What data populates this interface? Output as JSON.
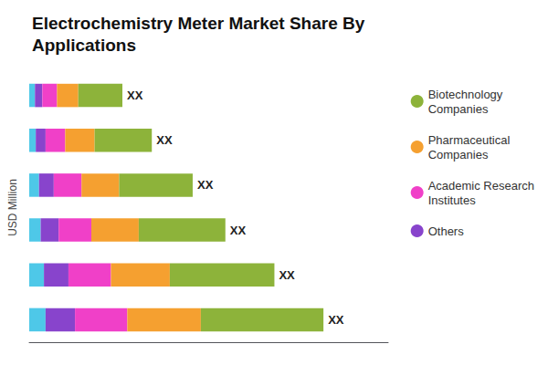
{
  "chart_data": {
    "type": "bar",
    "orientation": "horizontal",
    "stacked": true,
    "title": "Electrochemistry Meter Market Share By\nApplications",
    "y_label": "USD Million",
    "categories": [
      null,
      null,
      null,
      null,
      null,
      null
    ],
    "series": [
      {
        "color": "#4ec8e8",
        "values": [
          1.0,
          0.9,
          0.7,
          0.6,
          0.4,
          0.35
        ]
      },
      {
        "name": "Others",
        "color": "#8844cc",
        "values": [
          1.8,
          1.5,
          1.1,
          0.9,
          0.6,
          0.45
        ]
      },
      {
        "name": "Academic Research\nInstitutes",
        "color": "#f040c8",
        "values": [
          3.2,
          2.6,
          2.0,
          1.7,
          1.2,
          0.9
        ]
      },
      {
        "name": "Pharmaceutical\nCompanies",
        "color": "#f5a030",
        "values": [
          4.5,
          3.6,
          2.9,
          2.3,
          1.8,
          1.3
        ]
      },
      {
        "name": "Biotechnology\nCompanies",
        "color": "#8db33a",
        "values": [
          7.5,
          6.4,
          5.3,
          4.5,
          3.5,
          2.7
        ]
      }
    ],
    "annotations": [
      "XX",
      "XX",
      "XX",
      "XX",
      "XX",
      "XX"
    ],
    "xlim": [
      0,
      21.96
    ],
    "xticks": [],
    "tick_labels": false,
    "grid": false,
    "legend": "right"
  }
}
